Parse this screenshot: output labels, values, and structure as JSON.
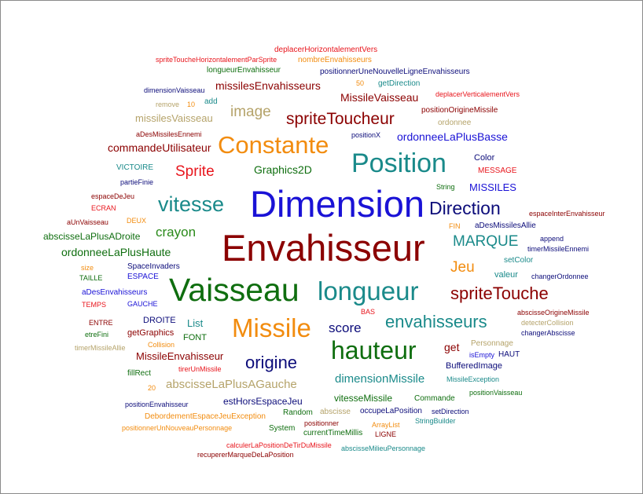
{
  "palette": {
    "red": "#e8151c",
    "dark_red": "#8b0000",
    "orange": "#f28c0f",
    "teal": "#1a8a8a",
    "dark_green": "#0f6e0f",
    "blue": "#1a12d6",
    "navy": "#0c0c7a",
    "tan": "#b5a36a",
    "green": "#2a8a1a"
  },
  "words": [
    "deplacerHorizontalementVers",
    "spriteToucheHorizontalementParSprite",
    "nombreEnvahisseurs",
    "longueurEnvahisseur",
    "positionnerUneNouvelleLigneEnvahisseurs",
    "dimensionVaisseau",
    "missilesEnvahisseurs",
    "50",
    "getDirection",
    "deplacerVerticalementVers",
    "MissileVaisseau",
    "remove",
    "10",
    "add",
    "image",
    "positionOrigineMissile",
    "missilesVaisseau",
    "spriteToucheur",
    "ordonnee",
    "aDesMissilesEnnemi",
    "positionX",
    "ordonneeLaPlusBasse",
    "commandeUtilisateur",
    "Constante",
    "Position",
    "Color",
    "VICTOIRE",
    "Sprite",
    "Graphics2D",
    "MESSAGE",
    "partieFinie",
    "String",
    "MISSILES",
    "espaceDeJeu",
    "vitesse",
    "Dimension",
    "ECRAN",
    "Direction",
    "espaceInterEnvahisseur",
    "aUnVaisseau",
    "DEUX",
    "FIN",
    "aDesMissilesAllie",
    "abscisseLaPlusADroite",
    "crayon",
    "MARQUE",
    "append",
    "ordonneeLaPlusHaute",
    "Envahisseur",
    "timerMissileEnnemi",
    "size",
    "SpaceInvaders",
    "Jeu",
    "setColor",
    "TAILLE",
    "ESPACE",
    "valeur",
    "changerOrdonnee",
    "aDesEnvahisseurs",
    "Vaisseau",
    "longueur",
    "spriteTouche",
    "TEMPS",
    "GAUCHE",
    "BAS",
    "abscisseOrigineMissile",
    "DROITE",
    "List",
    "envahisseurs",
    "detecterCollision",
    "ENTRE",
    "Missile",
    "score",
    "changerAbscisse",
    "etreFini",
    "getGraphics",
    "FONT",
    "Personnage",
    "timerMissileAllie",
    "Collision",
    "hauteur",
    "get",
    "MissileEnvahisseur",
    "origine",
    "isEmpty",
    "HAUT",
    "tirerUnMissile",
    "BufferedImage",
    "fillRect",
    "dimensionMissile",
    "MissileException",
    "20",
    "abscisseLaPlusAGauche",
    "positionVaisseau",
    "vitesseMissile",
    "Commande",
    "positionEnvahisseur",
    "estHorsEspaceJeu",
    "DebordementEspaceJeuException",
    "Random",
    "abscisse",
    "occupeLaPosition",
    "setDirection",
    "positionner",
    "ArrayList",
    "StringBuilder",
    "positionnerUnNouveauPersonnage",
    "System",
    "currentTimeMillis",
    "LIGNE",
    "calculerLaPositionDeTirDuMissile",
    "abscisseMilieuPersonnage",
    "recupererMarqueDeLaPosition"
  ]
}
